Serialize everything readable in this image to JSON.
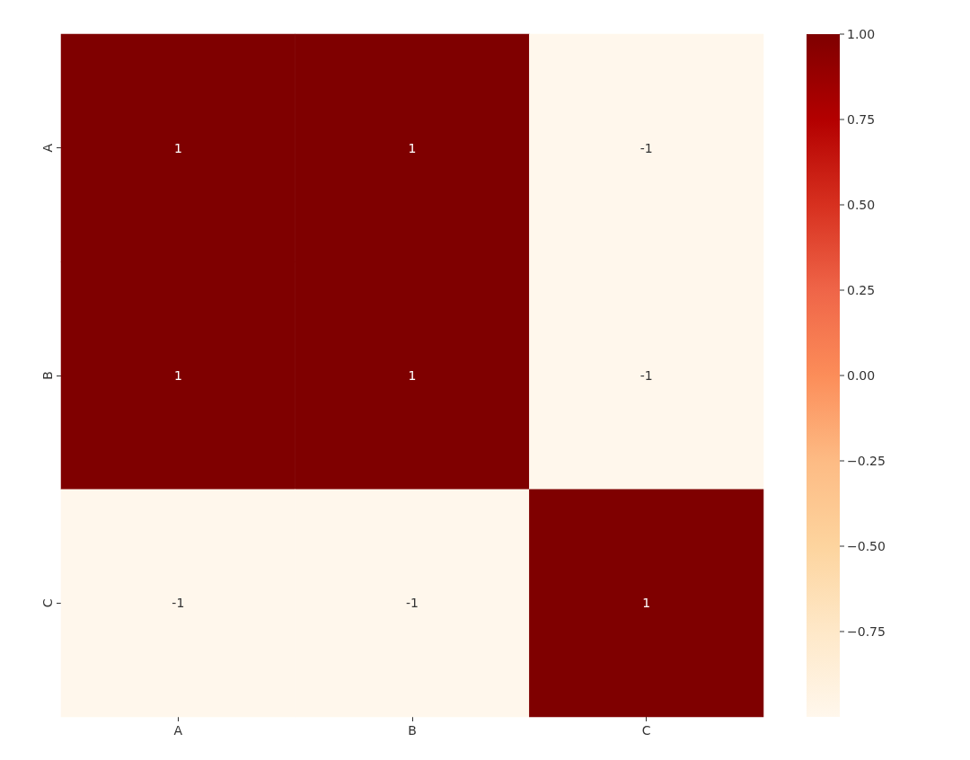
{
  "chart_data": {
    "type": "heatmap",
    "categories": [
      "A",
      "B",
      "C"
    ],
    "y_categories": [
      "A",
      "B",
      "C"
    ],
    "cells": [
      [
        1,
        1,
        -1
      ],
      [
        1,
        1,
        -1
      ],
      [
        -1,
        -1,
        1
      ]
    ],
    "data_labels": true,
    "clim": [
      -1,
      1
    ],
    "cticks": [
      {
        "value": -0.75,
        "label": "−0.75"
      },
      {
        "value": -0.5,
        "label": "−0.50"
      },
      {
        "value": -0.25,
        "label": "−0.25"
      },
      {
        "value": 0,
        "label": "0.00"
      },
      {
        "value": 0.25,
        "label": "0.25"
      },
      {
        "value": 0.5,
        "label": "0.50"
      },
      {
        "value": 0.75,
        "label": "0.75"
      },
      {
        "value": 1,
        "label": "1.00"
      }
    ]
  }
}
